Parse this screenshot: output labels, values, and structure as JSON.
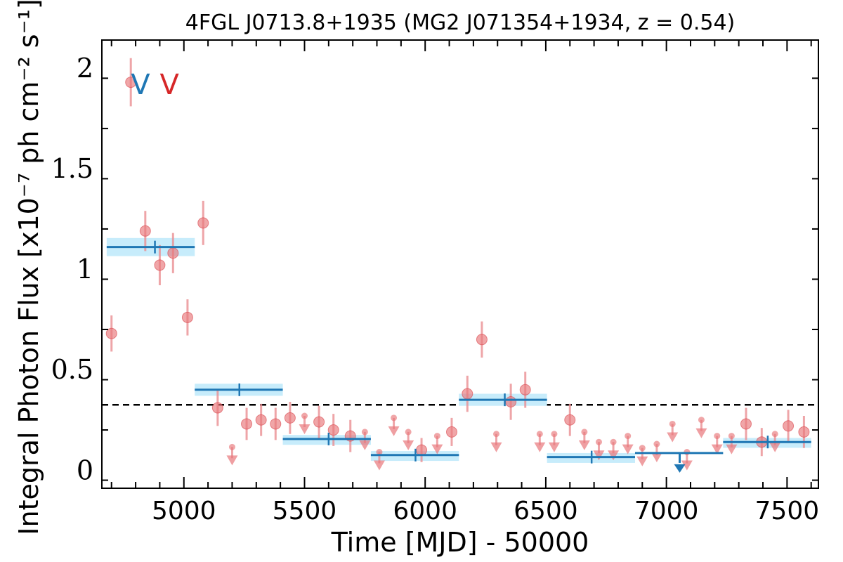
{
  "chart_data": {
    "type": "scatter",
    "title": "4FGL J0713.8+1935 (MG2 J071354+1934, z = 0.54)",
    "xlabel": "Time [MJD] - 50000",
    "ylabel": "Integral Photon Flux [x10⁻⁷ ph cm⁻² s⁻¹]",
    "xlim": [
      4660,
      7630
    ],
    "ylim": [
      -0.09,
      2.14
    ],
    "x_ticks": [
      {
        "value": 5000,
        "label": "5000"
      },
      {
        "value": 5500,
        "label": "5500"
      },
      {
        "value": 6000,
        "label": "6000"
      },
      {
        "value": 6500,
        "label": "6500"
      },
      {
        "value": 7000,
        "label": "7000"
      }
    ],
    "y_ticks": [
      {
        "value": 0,
        "label": "0"
      },
      {
        "value": 0.5,
        "label": "0.5"
      },
      {
        "value": 1,
        "label": "1"
      },
      {
        "value": 1.5,
        "label": "1.5"
      },
      {
        "value": 2,
        "label": "2"
      }
    ],
    "extra_x_tick_label": {
      "value": 7500,
      "label": "7500"
    },
    "dashed_line_y": 0.325,
    "markers": [
      {
        "label": "V",
        "x": 4820,
        "y": 1.92,
        "color": "#1f77b4"
      },
      {
        "label": "V",
        "x": 4940,
        "y": 1.92,
        "color": "#d62728"
      }
    ],
    "colors": {
      "points": "#e8767a",
      "points_err": "#eb8f93",
      "bins": "#1f77b4",
      "bins_band": "#c7ecfb",
      "dashed": "#000000"
    },
    "points": [
      {
        "x": 4700,
        "y": 0.68,
        "err": 0.09
      },
      {
        "x": 4780,
        "y": 1.93,
        "err": 0.12
      },
      {
        "x": 4840,
        "y": 1.19,
        "err": 0.1
      },
      {
        "x": 4900,
        "y": 1.02,
        "err": 0.1
      },
      {
        "x": 4955,
        "y": 1.08,
        "err": 0.1
      },
      {
        "x": 5015,
        "y": 0.76,
        "err": 0.09
      },
      {
        "x": 5080,
        "y": 1.23,
        "err": 0.11
      },
      {
        "x": 5140,
        "y": 0.31,
        "err": 0.09
      },
      {
        "x": 5260,
        "y": 0.23,
        "err": 0.08
      },
      {
        "x": 5320,
        "y": 0.25,
        "err": 0.08
      },
      {
        "x": 5380,
        "y": 0.23,
        "err": 0.08
      },
      {
        "x": 5440,
        "y": 0.26,
        "err": 0.08
      },
      {
        "x": 5560,
        "y": 0.24,
        "err": 0.08
      },
      {
        "x": 5620,
        "y": 0.2,
        "err": 0.08
      },
      {
        "x": 5690,
        "y": 0.17,
        "err": 0.08
      },
      {
        "x": 5985,
        "y": 0.1,
        "err": 0.06
      },
      {
        "x": 6110,
        "y": 0.19,
        "err": 0.07
      },
      {
        "x": 6175,
        "y": 0.38,
        "err": 0.09
      },
      {
        "x": 6235,
        "y": 0.65,
        "err": 0.09
      },
      {
        "x": 6355,
        "y": 0.34,
        "err": 0.09
      },
      {
        "x": 6415,
        "y": 0.4,
        "err": 0.09
      },
      {
        "x": 6600,
        "y": 0.25,
        "err": 0.08
      },
      {
        "x": 7330,
        "y": 0.23,
        "err": 0.08
      },
      {
        "x": 7395,
        "y": 0.14,
        "err": 0.07
      },
      {
        "x": 7505,
        "y": 0.22,
        "err": 0.08
      },
      {
        "x": 7570,
        "y": 0.19,
        "err": 0.08
      }
    ],
    "upper_limits": [
      {
        "x": 5200,
        "y": 0.115
      },
      {
        "x": 5500,
        "y": 0.27
      },
      {
        "x": 5750,
        "y": 0.19
      },
      {
        "x": 5810,
        "y": 0.09
      },
      {
        "x": 5870,
        "y": 0.26
      },
      {
        "x": 5930,
        "y": 0.19
      },
      {
        "x": 6050,
        "y": 0.17
      },
      {
        "x": 6295,
        "y": 0.18
      },
      {
        "x": 6475,
        "y": 0.18
      },
      {
        "x": 6535,
        "y": 0.18
      },
      {
        "x": 6660,
        "y": 0.19
      },
      {
        "x": 6720,
        "y": 0.14
      },
      {
        "x": 6780,
        "y": 0.14
      },
      {
        "x": 6840,
        "y": 0.17
      },
      {
        "x": 6900,
        "y": 0.11
      },
      {
        "x": 6960,
        "y": 0.13
      },
      {
        "x": 7025,
        "y": 0.23
      },
      {
        "x": 7085,
        "y": 0.09
      },
      {
        "x": 7145,
        "y": 0.25
      },
      {
        "x": 7210,
        "y": 0.17
      },
      {
        "x": 7270,
        "y": 0.17
      },
      {
        "x": 7450,
        "y": 0.18
      }
    ],
    "bins": [
      {
        "x0": 4680,
        "x1": 5045,
        "xc": 4880,
        "y": 1.11,
        "err": 0.045
      },
      {
        "x0": 5045,
        "x1": 5410,
        "xc": 5230,
        "y": 0.4,
        "err": 0.03
      },
      {
        "x0": 5410,
        "x1": 5775,
        "xc": 5600,
        "y": 0.155,
        "err": 0.02
      },
      {
        "x0": 5775,
        "x1": 6140,
        "xc": 5960,
        "y": 0.075,
        "err": 0.02
      },
      {
        "x0": 6140,
        "x1": 6505,
        "xc": 6330,
        "y": 0.35,
        "err": 0.03
      },
      {
        "x0": 6505,
        "x1": 6870,
        "xc": 6690,
        "y": 0.065,
        "err": 0.02
      },
      {
        "x0": 7235,
        "x1": 7600,
        "xc": 7420,
        "y": 0.14,
        "err": 0.02
      }
    ],
    "bin_upper_limits": [
      {
        "x0": 6870,
        "x1": 7235,
        "xc": 7055,
        "y": 0.085
      }
    ]
  }
}
